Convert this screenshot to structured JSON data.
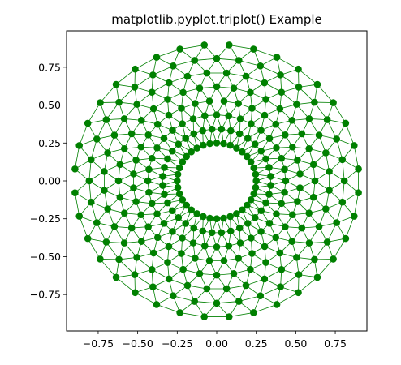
{
  "chart_data": {
    "type": "scatter",
    "title": "matplotlib.pyplot.triplot() Example",
    "xlabel": "",
    "ylabel": "",
    "xlim": [
      -0.95,
      0.95
    ],
    "ylim": [
      -0.99,
      0.99
    ],
    "x_ticks": [
      -0.75,
      -0.5,
      -0.25,
      0.0,
      0.25,
      0.5,
      0.75
    ],
    "y_ticks": [
      -0.75,
      -0.5,
      -0.25,
      0.0,
      0.25,
      0.5,
      0.75
    ],
    "x_tick_labels": [
      "−0.75",
      "−0.50",
      "−0.25",
      "0.00",
      "0.25",
      "0.50",
      "0.75"
    ],
    "y_tick_labels": [
      "−0.75",
      "−0.50",
      "−0.25",
      "0.00",
      "0.25",
      "0.50",
      "0.75"
    ],
    "grid": false,
    "legend": "none",
    "aspect": "equal",
    "mesh": {
      "description": "annulus triangulation",
      "n_radii": 8,
      "n_angles": 36,
      "min_radius": 0.25,
      "max_radius": 0.9,
      "angle_offset_per_ring": "pi / n_angles",
      "point_style": "o",
      "line_style": "-"
    },
    "colors": {
      "line": "#008000",
      "marker": "#008000"
    }
  }
}
